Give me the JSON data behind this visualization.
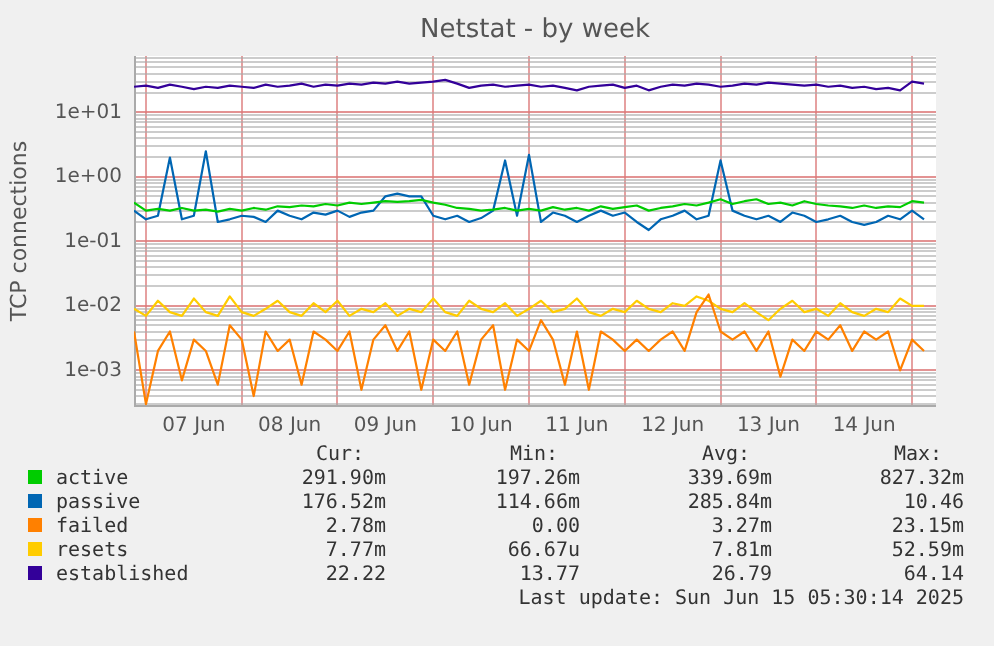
{
  "chart_data": {
    "type": "line",
    "title": "Netstat - by week",
    "ylabel": "TCP connections",
    "log": "y",
    "grid": true,
    "legend": "bottom",
    "marker": "none",
    "line_style": "solid",
    "xlim": [
      "2025-06-06T21:00",
      "2025-06-15T06:00"
    ],
    "xticks": [
      {
        "value": "2025-06-07T00:00",
        "label": null
      },
      {
        "value": "2025-06-07T12:00",
        "label": "07 Jun"
      },
      {
        "value": "2025-06-08T00:00",
        "label": null
      },
      {
        "value": "2025-06-08T12:00",
        "label": "08 Jun"
      },
      {
        "value": "2025-06-09T00:00",
        "label": null
      },
      {
        "value": "2025-06-09T12:00",
        "label": "09 Jun"
      },
      {
        "value": "2025-06-10T00:00",
        "label": null
      },
      {
        "value": "2025-06-10T12:00",
        "label": "10 Jun"
      },
      {
        "value": "2025-06-11T00:00",
        "label": null
      },
      {
        "value": "2025-06-11T12:00",
        "label": "11 Jun"
      },
      {
        "value": "2025-06-12T00:00",
        "label": null
      },
      {
        "value": "2025-06-12T12:00",
        "label": "12 Jun"
      },
      {
        "value": "2025-06-13T00:00",
        "label": null
      },
      {
        "value": "2025-06-13T12:00",
        "label": "13 Jun"
      },
      {
        "value": "2025-06-14T00:00",
        "label": null
      },
      {
        "value": "2025-06-14T12:00",
        "label": "14 Jun"
      },
      {
        "value": "2025-06-15T00:00",
        "label": null
      }
    ],
    "ylim": [
      0.00028,
      75
    ],
    "yticks": [
      {
        "value": 0.0003,
        "label": null
      },
      {
        "value": 0.0004,
        "label": null
      },
      {
        "value": 0.0005,
        "label": null
      },
      {
        "value": 0.0006,
        "label": null
      },
      {
        "value": 0.0007,
        "label": null
      },
      {
        "value": 0.0008,
        "label": null
      },
      {
        "value": 0.0009,
        "label": null
      },
      {
        "value": 0.001,
        "label": "1e-03"
      },
      {
        "value": 0.002,
        "label": null
      },
      {
        "value": 0.003,
        "label": null
      },
      {
        "value": 0.004,
        "label": null
      },
      {
        "value": 0.005,
        "label": null
      },
      {
        "value": 0.006,
        "label": null
      },
      {
        "value": 0.007,
        "label": null
      },
      {
        "value": 0.008,
        "label": null
      },
      {
        "value": 0.009,
        "label": null
      },
      {
        "value": 0.01,
        "label": "1e-02"
      },
      {
        "value": 0.02,
        "label": null
      },
      {
        "value": 0.03,
        "label": null
      },
      {
        "value": 0.04,
        "label": null
      },
      {
        "value": 0.05,
        "label": null
      },
      {
        "value": 0.06,
        "label": null
      },
      {
        "value": 0.07,
        "label": null
      },
      {
        "value": 0.08,
        "label": null
      },
      {
        "value": 0.09,
        "label": null
      },
      {
        "value": 0.1,
        "label": "1e-01"
      },
      {
        "value": 0.2,
        "label": null
      },
      {
        "value": 0.3,
        "label": null
      },
      {
        "value": 0.4,
        "label": null
      },
      {
        "value": 0.5,
        "label": null
      },
      {
        "value": 0.6,
        "label": null
      },
      {
        "value": 0.7,
        "label": null
      },
      {
        "value": 0.8,
        "label": null
      },
      {
        "value": 0.9,
        "label": null
      },
      {
        "value": 1,
        "label": "1e+00"
      },
      {
        "value": 2,
        "label": null
      },
      {
        "value": 3,
        "label": null
      },
      {
        "value": 4,
        "label": null
      },
      {
        "value": 5,
        "label": null
      },
      {
        "value": 6,
        "label": null
      },
      {
        "value": 7,
        "label": null
      },
      {
        "value": 8,
        "label": null
      },
      {
        "value": 9,
        "label": null
      },
      {
        "value": 10,
        "label": "1e+01"
      },
      {
        "value": 20,
        "label": null
      },
      {
        "value": 30,
        "label": null
      },
      {
        "value": 40,
        "label": null
      },
      {
        "value": 50,
        "label": null
      },
      {
        "value": 60,
        "label": null
      },
      {
        "value": 70,
        "label": null
      }
    ],
    "x": [
      "2025-06-06T21:00",
      "2025-06-07T00:00",
      "2025-06-07T03:00",
      "2025-06-07T06:00",
      "2025-06-07T09:00",
      "2025-06-07T12:00",
      "2025-06-07T15:00",
      "2025-06-07T18:00",
      "2025-06-07T21:00",
      "2025-06-08T00:00",
      "2025-06-08T03:00",
      "2025-06-08T06:00",
      "2025-06-08T09:00",
      "2025-06-08T12:00",
      "2025-06-08T15:00",
      "2025-06-08T18:00",
      "2025-06-08T21:00",
      "2025-06-09T00:00",
      "2025-06-09T03:00",
      "2025-06-09T06:00",
      "2025-06-09T09:00",
      "2025-06-09T12:00",
      "2025-06-09T15:00",
      "2025-06-09T18:00",
      "2025-06-09T21:00",
      "2025-06-10T00:00",
      "2025-06-10T03:00",
      "2025-06-10T06:00",
      "2025-06-10T09:00",
      "2025-06-10T12:00",
      "2025-06-10T15:00",
      "2025-06-10T18:00",
      "2025-06-10T21:00",
      "2025-06-11T00:00",
      "2025-06-11T03:00",
      "2025-06-11T06:00",
      "2025-06-11T09:00",
      "2025-06-11T12:00",
      "2025-06-11T15:00",
      "2025-06-11T18:00",
      "2025-06-11T21:00",
      "2025-06-12T00:00",
      "2025-06-12T03:00",
      "2025-06-12T06:00",
      "2025-06-12T09:00",
      "2025-06-12T12:00",
      "2025-06-12T15:00",
      "2025-06-12T18:00",
      "2025-06-12T21:00",
      "2025-06-13T00:00",
      "2025-06-13T03:00",
      "2025-06-13T06:00",
      "2025-06-13T09:00",
      "2025-06-13T12:00",
      "2025-06-13T15:00",
      "2025-06-13T18:00",
      "2025-06-13T21:00",
      "2025-06-14T00:00",
      "2025-06-14T03:00",
      "2025-06-14T06:00",
      "2025-06-14T09:00",
      "2025-06-14T12:00",
      "2025-06-14T15:00",
      "2025-06-14T18:00",
      "2025-06-14T21:00",
      "2025-06-15T00:00",
      "2025-06-15T03:00"
    ],
    "series": [
      {
        "name": "active",
        "color": "#00cc00",
        "values": [
          0.4,
          0.3,
          0.32,
          0.3,
          0.33,
          0.3,
          0.31,
          0.29,
          0.32,
          0.3,
          0.33,
          0.31,
          0.35,
          0.34,
          0.36,
          0.35,
          0.38,
          0.36,
          0.4,
          0.38,
          0.4,
          0.42,
          0.41,
          0.42,
          0.44,
          0.4,
          0.37,
          0.33,
          0.32,
          0.3,
          0.31,
          0.33,
          0.3,
          0.32,
          0.3,
          0.34,
          0.31,
          0.33,
          0.3,
          0.35,
          0.32,
          0.34,
          0.36,
          0.3,
          0.33,
          0.35,
          0.38,
          0.36,
          0.4,
          0.45,
          0.38,
          0.42,
          0.45,
          0.38,
          0.4,
          0.36,
          0.42,
          0.38,
          0.36,
          0.35,
          0.33,
          0.36,
          0.33,
          0.35,
          0.34,
          0.42,
          0.4
        ]
      },
      {
        "name": "passive",
        "color": "#0066b3",
        "values": [
          0.3,
          0.22,
          0.25,
          2,
          0.22,
          0.25,
          2.5,
          0.2,
          0.22,
          0.25,
          0.24,
          0.2,
          0.3,
          0.25,
          0.22,
          0.28,
          0.26,
          0.3,
          0.24,
          0.28,
          0.3,
          0.5,
          0.55,
          0.5,
          0.5,
          0.25,
          0.22,
          0.25,
          0.2,
          0.23,
          0.3,
          1.8,
          0.25,
          2.2,
          0.2,
          0.28,
          0.25,
          0.2,
          0.25,
          0.3,
          0.25,
          0.28,
          0.2,
          0.15,
          0.22,
          0.25,
          0.3,
          0.22,
          0.25,
          1.8,
          0.3,
          0.25,
          0.22,
          0.25,
          0.2,
          0.28,
          0.25,
          0.2,
          0.22,
          0.25,
          0.2,
          0.18,
          0.2,
          0.25,
          0.22,
          0.3,
          0.22
        ]
      },
      {
        "name": "failed",
        "color": "#ff8000",
        "values": [
          0.004,
          0.0003,
          0.002,
          0.004,
          0.0007,
          0.003,
          0.002,
          0.0006,
          0.005,
          0.003,
          0.0004,
          0.004,
          0.002,
          0.003,
          0.0006,
          0.004,
          0.003,
          0.002,
          0.004,
          0.0005,
          0.003,
          0.005,
          0.002,
          0.004,
          0.0005,
          0.003,
          0.002,
          0.004,
          0.0006,
          0.003,
          0.005,
          0.0005,
          0.003,
          0.002,
          0.006,
          0.003,
          0.0006,
          0.004,
          0.0005,
          0.004,
          0.003,
          0.002,
          0.003,
          0.002,
          0.003,
          0.004,
          0.002,
          0.008,
          0.015,
          0.004,
          0.003,
          0.004,
          0.002,
          0.004,
          0.0008,
          0.003,
          0.002,
          0.004,
          0.003,
          0.005,
          0.002,
          0.004,
          0.003,
          0.004,
          0.001,
          0.003,
          0.002
        ]
      },
      {
        "name": "resets",
        "color": "#ffcc00",
        "values": [
          0.009,
          0.007,
          0.012,
          0.008,
          0.007,
          0.013,
          0.008,
          0.007,
          0.014,
          0.008,
          0.007,
          0.009,
          0.012,
          0.008,
          0.007,
          0.011,
          0.008,
          0.012,
          0.007,
          0.009,
          0.008,
          0.011,
          0.007,
          0.009,
          0.008,
          0.013,
          0.008,
          0.007,
          0.012,
          0.009,
          0.008,
          0.011,
          0.007,
          0.009,
          0.012,
          0.008,
          0.009,
          0.013,
          0.008,
          0.007,
          0.009,
          0.008,
          0.012,
          0.009,
          0.008,
          0.011,
          0.01,
          0.014,
          0.012,
          0.009,
          0.008,
          0.011,
          0.008,
          0.006,
          0.009,
          0.012,
          0.008,
          0.009,
          0.007,
          0.011,
          0.008,
          0.007,
          0.009,
          0.008,
          0.013,
          0.01,
          0.01
        ]
      },
      {
        "name": "established",
        "color": "#330099",
        "values": [
          25,
          26,
          24,
          27,
          25,
          23,
          25,
          24,
          26,
          25,
          24,
          27,
          25,
          26,
          28,
          25,
          27,
          26,
          28,
          27,
          29,
          28,
          30,
          28,
          29,
          30,
          32,
          28,
          24,
          26,
          27,
          25,
          26,
          27,
          25,
          26,
          24,
          22,
          25,
          26,
          27,
          24,
          26,
          22,
          25,
          27,
          26,
          28,
          27,
          25,
          26,
          28,
          27,
          29,
          28,
          27,
          26,
          27,
          25,
          26,
          24,
          25,
          23,
          24,
          22,
          30,
          28
        ]
      }
    ],
    "annotations": [
      "Cur:",
      "Min:",
      "Avg:",
      "Max:",
      "291.90m",
      "197.26m",
      "339.69m",
      "827.32m",
      "176.52m",
      "114.66m",
      "285.84m",
      "10.46",
      "2.78m",
      "0.00",
      "3.27m",
      "23.15m",
      "7.77m",
      "66.67u",
      "7.81m",
      "52.59m",
      "22.22",
      "13.77",
      "26.79",
      "64.14",
      "Last update: Sun Jun 15 05:30:14 2025"
    ]
  }
}
